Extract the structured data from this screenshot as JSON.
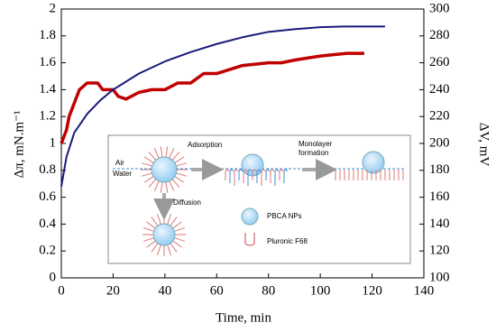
{
  "chart_data": {
    "type": "line",
    "xlabel": "Time, min",
    "ylabel": "Δπ, mN.m⁻¹",
    "y2label": "ΔV, mV",
    "xlim": [
      0,
      140
    ],
    "xticks": [
      0,
      20,
      40,
      60,
      80,
      100,
      120,
      140
    ],
    "ylim": [
      0,
      2
    ],
    "yticks": [
      0,
      0.2,
      0.4,
      0.6,
      0.8,
      1,
      1.2,
      1.4,
      1.6,
      1.8,
      2
    ],
    "y2lim": [
      100,
      300
    ],
    "y2ticks": [
      100,
      120,
      140,
      160,
      180,
      200,
      220,
      240,
      260,
      280,
      300
    ],
    "series": [
      {
        "color": "#c00000",
        "x": [
          0,
          1,
          2,
          3,
          4,
          5,
          7,
          10,
          14,
          16,
          20,
          22,
          25,
          30,
          35,
          40,
          45,
          50,
          55,
          60,
          65,
          70,
          80,
          85,
          90,
          100,
          110,
          117
        ],
        "values": [
          1.0,
          1.05,
          1.1,
          1.2,
          1.25,
          1.3,
          1.4,
          1.45,
          1.45,
          1.4,
          1.4,
          1.35,
          1.33,
          1.38,
          1.4,
          1.4,
          1.45,
          1.45,
          1.52,
          1.52,
          1.55,
          1.58,
          1.6,
          1.6,
          1.62,
          1.65,
          1.67,
          1.67
        ]
      },
      {
        "color": "#1a1a7a",
        "axis": "y2",
        "x": [
          0,
          2,
          5,
          10,
          15,
          20,
          30,
          40,
          50,
          60,
          70,
          80,
          90,
          100,
          110,
          120,
          125
        ],
        "values": [
          168,
          190,
          208,
          222,
          232,
          240,
          252,
          261,
          268,
          274,
          279,
          283,
          285,
          286.5,
          287,
          287,
          287
        ]
      }
    ],
    "annotations": [
      "Air",
      "Water",
      "Adsorption",
      "Monolayer",
      "formation",
      "Diffusion",
      "PBCA NPs",
      "Pluronic F68"
    ]
  }
}
